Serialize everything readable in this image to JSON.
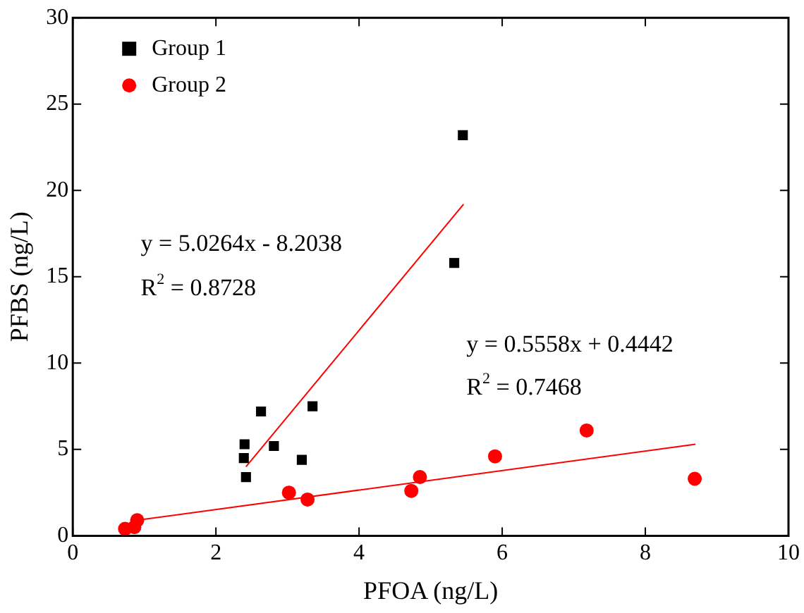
{
  "chart_data": {
    "type": "scatter",
    "xlabel": "PFOA (ng/L)",
    "ylabel": "PFBS (ng/L)",
    "xlim": [
      0,
      10
    ],
    "xticks": [
      0,
      2,
      4,
      6,
      8,
      10
    ],
    "ylim": [
      0,
      30
    ],
    "yticks": [
      0,
      5,
      10,
      15,
      20,
      25,
      30
    ],
    "grid": false,
    "legend": "top left",
    "series": [
      {
        "name": "Group 1",
        "color": "#000000",
        "marker": "square",
        "x": [
          2.4,
          2.39,
          2.42,
          2.63,
          2.81,
          3.2,
          3.35,
          5.33,
          5.45
        ],
        "values": [
          5.3,
          4.5,
          3.4,
          7.2,
          5.2,
          4.4,
          7.5,
          15.8,
          23.2
        ]
      },
      {
        "name": "Group 2",
        "color": "#ff0000",
        "marker": "circle",
        "x": [
          0.73,
          0.86,
          0.9,
          3.02,
          3.28,
          4.73,
          4.85,
          5.9,
          7.18,
          8.69
        ],
        "values": [
          0.4,
          0.5,
          0.9,
          2.5,
          2.1,
          2.6,
          3.4,
          4.6,
          6.1,
          3.3
        ]
      },
      {
        "type": "line",
        "color": "#ff0000",
        "marker": "none",
        "x": [
          2.42,
          5.46
        ],
        "values": [
          4.0,
          19.2
        ]
      },
      {
        "type": "line",
        "color": "#ff0000",
        "marker": "none",
        "x": [
          0.9,
          8.7
        ],
        "values": [
          0.9,
          5.3
        ]
      }
    ],
    "annotations": [
      "y = 5.0264x - 8.2038",
      "R$^{2}$ = 0.8728",
      "y = 0.5558x + 0.4442",
      "R$^{2}$ = 0.7468"
    ]
  }
}
